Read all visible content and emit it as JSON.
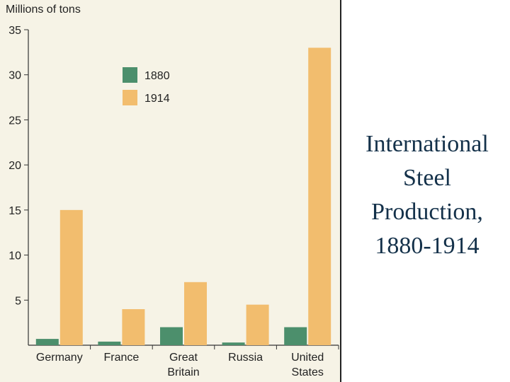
{
  "slide": {
    "title_lines": [
      "International",
      "Steel",
      "Production,",
      "1880-1914"
    ]
  },
  "colors": {
    "series_1880": "#4c8f6c",
    "series_1914": "#f2bd6e",
    "panel_background": "#f6f3e6",
    "title_text": "#14314a"
  },
  "chart_data": {
    "type": "bar",
    "title": "",
    "xlabel": "",
    "ylabel": "Millions of tons",
    "ylim": [
      0,
      35
    ],
    "yticks": [
      5,
      10,
      15,
      20,
      25,
      30,
      35
    ],
    "grid": false,
    "legend_position": "upper-left",
    "categories": [
      [
        "Germany"
      ],
      [
        "France"
      ],
      [
        "Great",
        "Britain"
      ],
      [
        "Russia"
      ],
      [
        "United",
        "States"
      ]
    ],
    "series": [
      {
        "name": "1880",
        "values": [
          0.7,
          0.4,
          2.0,
          0.3,
          2.0
        ]
      },
      {
        "name": "1914",
        "values": [
          15.0,
          4.0,
          7.0,
          4.5,
          33.0
        ]
      }
    ]
  }
}
